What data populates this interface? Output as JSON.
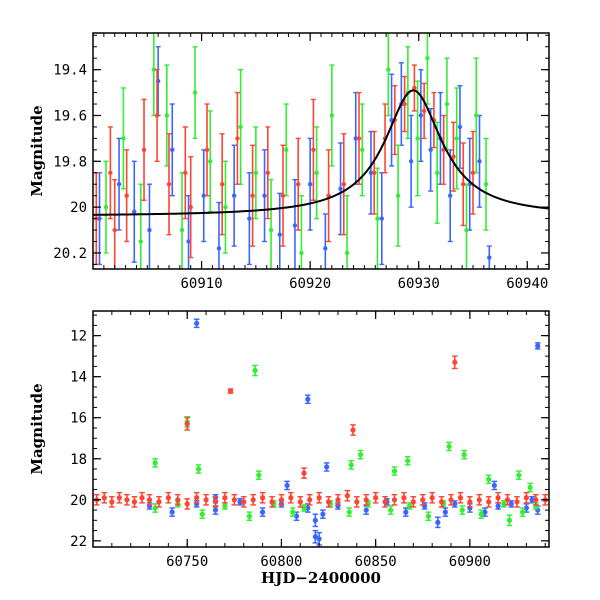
{
  "chart_data": [
    {
      "type": "scatter",
      "title": "",
      "xlabel": "",
      "ylabel": "Magnitude",
      "xlim": [
        60900,
        60942
      ],
      "ylim": [
        20.27,
        19.24
      ],
      "y_inverted": true,
      "grid": false,
      "xticks": [
        "60910",
        "60920",
        "60930",
        "60940"
      ],
      "yticks": [
        "19.4",
        "19.6",
        "19.8",
        "20",
        "20.2"
      ],
      "model_curve": {
        "color": "#000000",
        "t0": 60929.5,
        "baseline": 20.04,
        "peak": 19.49,
        "width": 3.2,
        "x": [
          60900,
          60905,
          60910,
          60915,
          60918,
          60921,
          60923,
          60925,
          60927,
          60928.5,
          60929.5,
          60930.5,
          60932,
          60934,
          60936,
          60938,
          60940,
          60942
        ],
        "y": [
          20.03,
          20.03,
          20.02,
          20.0,
          19.98,
          19.94,
          19.89,
          19.8,
          19.66,
          19.54,
          19.49,
          19.54,
          19.68,
          19.8,
          19.87,
          19.92,
          19.96,
          19.98
        ]
      },
      "series": [
        {
          "color": "#3a66ff",
          "x": [
            60900.6,
            60902.4,
            60903.8,
            60905.2,
            60906.0,
            60907.3,
            60908.8,
            60910.2,
            60911.6,
            60913.0,
            60914.4,
            60915.8,
            60917.2,
            60918.6,
            60920.0,
            60921.4,
            60922.8,
            60924.2,
            60925.6,
            60926.6,
            60927.5,
            60928.4,
            60929.3,
            60930.2,
            60931.1,
            60932.0,
            60932.9,
            60933.8,
            60934.7,
            60935.6,
            60936.5
          ],
          "y": [
            20.05,
            19.9,
            20.02,
            20.1,
            19.45,
            19.75,
            20.15,
            19.95,
            20.18,
            19.95,
            20.05,
            19.95,
            20.12,
            20.08,
            19.9,
            20.18,
            19.92,
            19.7,
            19.85,
            20.05,
            19.62,
            19.55,
            19.8,
            19.6,
            19.75,
            19.7,
            19.95,
            19.65,
            19.9,
            19.8,
            20.22
          ],
          "err": [
            0.2,
            0.2,
            0.22,
            0.2,
            0.15,
            0.2,
            0.2,
            0.2,
            0.2,
            0.22,
            0.2,
            0.2,
            0.18,
            0.2,
            0.2,
            0.15,
            0.2,
            0.2,
            0.18,
            0.2,
            0.2,
            0.18,
            0.2,
            0.2,
            0.18,
            0.2,
            0.2,
            0.18,
            0.2,
            0.2,
            0.05
          ]
        },
        {
          "color": "#33ee33",
          "x": [
            60901.2,
            60902.8,
            60904.4,
            60905.6,
            60906.8,
            60908.2,
            60909.4,
            60910.8,
            60912.2,
            60913.6,
            60915.0,
            60916.4,
            60917.8,
            60919.2,
            60920.6,
            60922.0,
            60923.4,
            60924.8,
            60926.2,
            60927.2,
            60928.1,
            60929.0,
            60929.9,
            60930.8,
            60931.7,
            60932.6,
            60933.5,
            60934.4,
            60935.3,
            60936.2
          ],
          "y": [
            20.0,
            19.7,
            20.15,
            19.4,
            19.6,
            20.1,
            19.5,
            19.8,
            20.0,
            19.65,
            19.85,
            20.1,
            19.75,
            20.2,
            19.85,
            19.6,
            20.2,
            19.75,
            20.05,
            19.4,
            19.95,
            19.5,
            19.7,
            19.35,
            19.85,
            19.55,
            19.7,
            20.1,
            19.6,
            19.9
          ],
          "err": [
            0.2,
            0.22,
            0.25,
            0.2,
            0.22,
            0.25,
            0.2,
            0.22,
            0.2,
            0.25,
            0.2,
            0.22,
            0.2,
            0.25,
            0.2,
            0.22,
            0.25,
            0.2,
            0.22,
            0.2,
            0.22,
            0.2,
            0.25,
            0.2,
            0.22,
            0.2,
            0.22,
            0.2,
            0.25,
            0.2
          ]
        },
        {
          "color": "#ff4433",
          "x": [
            60900.3,
            60901.6,
            60902.0,
            60903.1,
            60904.7,
            60905.9,
            60907.0,
            60908.5,
            60909.0,
            60910.5,
            60911.9,
            60913.3,
            60914.7,
            60916.1,
            60917.5,
            60918.9,
            60920.3,
            60921.7,
            60923.1,
            60924.5,
            60925.9,
            60926.9,
            60927.8,
            60928.7,
            60929.6,
            60930.5,
            60931.4,
            60932.3,
            60933.2,
            60934.1,
            60935.0
          ],
          "y": [
            20.05,
            19.85,
            20.1,
            19.95,
            19.75,
            19.6,
            19.9,
            19.85,
            20.0,
            19.75,
            19.9,
            19.7,
            19.95,
            19.85,
            19.95,
            19.9,
            19.75,
            19.95,
            19.9,
            19.7,
            19.85,
            19.7,
            19.62,
            19.55,
            19.48,
            19.58,
            19.62,
            19.75,
            19.78,
            19.9,
            19.85
          ],
          "err": [
            0.2,
            0.2,
            0.22,
            0.2,
            0.22,
            0.2,
            0.22,
            0.2,
            0.22,
            0.2,
            0.22,
            0.2,
            0.22,
            0.2,
            0.22,
            0.2,
            0.22,
            0.2,
            0.22,
            0.2,
            0.18,
            0.15,
            0.15,
            0.12,
            0.1,
            0.12,
            0.12,
            0.15,
            0.15,
            0.18,
            0.18
          ]
        }
      ]
    },
    {
      "type": "scatter",
      "title": "",
      "xlabel": "HJD−2400000",
      "ylabel": "Magnitude",
      "xlim": [
        60700,
        60942
      ],
      "ylim": [
        22.3,
        10.8
      ],
      "y_inverted": true,
      "grid": false,
      "xticks": [
        "60750",
        "60800",
        "60850",
        "60900"
      ],
      "yticks": [
        "12",
        "14",
        "16",
        "18",
        "20",
        "22"
      ],
      "series": [
        {
          "color": "#3a66ff",
          "x": [
            60730,
            60742,
            60755,
            60765,
            60778,
            60790,
            60800,
            60808,
            60814,
            60818,
            60822,
            60830,
            60845,
            60856,
            60866,
            60876,
            60883,
            60887,
            60892,
            60900,
            60908,
            60915,
            60922,
            60930,
            60933,
            60936,
            60755,
            60765,
            60814,
            60818,
            60820,
            60803,
            60824,
            60913,
            60936
          ],
          "y": [
            20.3,
            20.6,
            20.2,
            20.5,
            20.1,
            20.6,
            20.2,
            20.8,
            20.4,
            21.8,
            20.7,
            20.3,
            20.5,
            20.1,
            20.6,
            20.3,
            21.1,
            20.6,
            20.2,
            20.4,
            20.6,
            20.3,
            20.2,
            20.4,
            20.0,
            20.5,
            11.4,
            19.9,
            15.1,
            21.0,
            21.9,
            19.3,
            18.4,
            19.3,
            12.5
          ],
          "err": [
            0.15,
            0.2,
            0.15,
            0.2,
            0.15,
            0.2,
            0.15,
            0.2,
            0.2,
            0.3,
            0.2,
            0.15,
            0.2,
            0.15,
            0.2,
            0.15,
            0.25,
            0.2,
            0.15,
            0.2,
            0.2,
            0.15,
            0.15,
            0.2,
            0.15,
            0.2,
            0.2,
            0.15,
            0.2,
            0.3,
            0.3,
            0.2,
            0.2,
            0.2,
            0.15
          ]
        },
        {
          "color": "#33ee33",
          "x": [
            60733,
            60745,
            60758,
            60770,
            60783,
            60796,
            60806,
            60812,
            60826,
            60836,
            60846,
            60858,
            60868,
            60878,
            60886,
            60896,
            60906,
            60918,
            60928,
            60935,
            60750,
            60786,
            60733,
            60756,
            60788,
            60837,
            60842,
            60860,
            60867,
            60889,
            60897,
            60910,
            60926,
            60932,
            60921
          ],
          "y": [
            20.4,
            20.2,
            20.7,
            20.3,
            20.8,
            20.2,
            20.6,
            20.4,
            20.2,
            20.6,
            20.2,
            20.5,
            20.3,
            20.8,
            20.2,
            20.5,
            20.7,
            20.2,
            20.6,
            20.3,
            16.2,
            13.7,
            18.2,
            18.5,
            18.8,
            18.3,
            17.8,
            18.6,
            18.1,
            17.4,
            17.8,
            19.0,
            18.8,
            19.4,
            21.0
          ],
          "err": [
            0.2,
            0.15,
            0.2,
            0.15,
            0.2,
            0.15,
            0.2,
            0.15,
            0.15,
            0.2,
            0.15,
            0.2,
            0.15,
            0.2,
            0.15,
            0.2,
            0.2,
            0.15,
            0.2,
            0.15,
            0.25,
            0.25,
            0.2,
            0.2,
            0.2,
            0.2,
            0.2,
            0.2,
            0.2,
            0.2,
            0.2,
            0.2,
            0.2,
            0.2,
            0.25
          ]
        },
        {
          "color": "#ff4433",
          "x": [
            60702,
            60706,
            60710,
            60714,
            60718,
            60722,
            60726,
            60730,
            60735,
            60740,
            60745,
            60750,
            60755,
            60760,
            60765,
            60770,
            60775,
            60780,
            60785,
            60790,
            60795,
            60800,
            60805,
            60810,
            60815,
            60820,
            60825,
            60830,
            60835,
            60840,
            60845,
            60850,
            60855,
            60860,
            60865,
            60870,
            60875,
            60880,
            60885,
            60890,
            60895,
            60900,
            60905,
            60910,
            60915,
            60920,
            60925,
            60930,
            60935,
            60940,
            60750,
            60773,
            60838,
            60892,
            60812
          ],
          "y": [
            20.0,
            19.9,
            20.1,
            19.9,
            20.0,
            20.1,
            19.9,
            20.0,
            20.1,
            19.9,
            20.0,
            20.2,
            19.9,
            20.0,
            20.1,
            19.9,
            20.0,
            20.1,
            20.0,
            19.9,
            20.1,
            20.0,
            19.9,
            20.1,
            20.0,
            19.9,
            20.1,
            20.0,
            19.8,
            20.1,
            20.0,
            19.9,
            20.1,
            20.0,
            19.9,
            20.1,
            20.0,
            19.9,
            20.1,
            20.0,
            19.9,
            20.1,
            20.0,
            20.1,
            19.9,
            20.0,
            20.1,
            19.9,
            20.0,
            20.0,
            16.3,
            14.7,
            16.6,
            13.3,
            18.7
          ],
          "err": [
            0.25,
            0.25,
            0.25,
            0.25,
            0.25,
            0.25,
            0.25,
            0.25,
            0.25,
            0.25,
            0.25,
            0.25,
            0.25,
            0.25,
            0.25,
            0.25,
            0.25,
            0.25,
            0.25,
            0.25,
            0.25,
            0.25,
            0.25,
            0.25,
            0.25,
            0.25,
            0.25,
            0.25,
            0.25,
            0.25,
            0.25,
            0.25,
            0.25,
            0.25,
            0.25,
            0.25,
            0.25,
            0.25,
            0.25,
            0.25,
            0.25,
            0.25,
            0.25,
            0.25,
            0.25,
            0.25,
            0.25,
            0.25,
            0.25,
            0.25,
            0.3,
            0.1,
            0.25,
            0.3,
            0.25
          ]
        }
      ]
    }
  ]
}
